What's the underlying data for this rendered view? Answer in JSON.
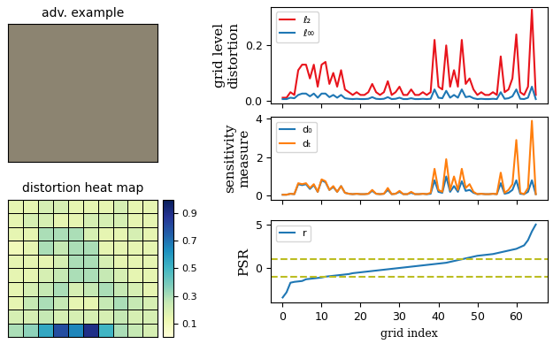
{
  "chart_data": [
    {
      "type": "image",
      "title": "adv. example"
    },
    {
      "type": "heatmap",
      "title": "distortion heat map",
      "tick_labels": false,
      "cells": [
        [
          0.15,
          0.15,
          0.2,
          0.2,
          0.15,
          0.15,
          0.15,
          0.2,
          0.15,
          0.15
        ],
        [
          0.15,
          0.2,
          0.2,
          0.15,
          0.15,
          0.2,
          0.2,
          0.2,
          0.15,
          0.15
        ],
        [
          0.15,
          0.15,
          0.3,
          0.3,
          0.3,
          0.2,
          0.15,
          0.15,
          0.2,
          0.15
        ],
        [
          0.1,
          0.15,
          0.3,
          0.25,
          0.3,
          0.3,
          0.15,
          0.15,
          0.15,
          0.15
        ],
        [
          0.15,
          0.15,
          0.15,
          0.2,
          0.3,
          0.3,
          0.2,
          0.15,
          0.15,
          0.15
        ],
        [
          0.15,
          0.15,
          0.2,
          0.25,
          0.3,
          0.3,
          0.25,
          0.2,
          0.15,
          0.15
        ],
        [
          0.15,
          0.2,
          0.25,
          0.3,
          0.2,
          0.25,
          0.3,
          0.25,
          0.2,
          0.15
        ],
        [
          0.15,
          0.25,
          0.3,
          0.25,
          0.15,
          0.15,
          0.25,
          0.3,
          0.25,
          0.2
        ],
        [
          0.2,
          0.2,
          0.25,
          0.2,
          0.2,
          0.2,
          0.2,
          0.25,
          0.2,
          0.2
        ],
        [
          0.3,
          0.35,
          0.55,
          0.8,
          0.65,
          0.9,
          0.5,
          0.3,
          0.25,
          0.2
        ]
      ],
      "colorbar": {
        "range": [
          0,
          1
        ],
        "ticks": [
          0.1,
          0.3,
          0.5,
          0.7,
          0.9
        ]
      }
    },
    {
      "type": "line",
      "y_label": "grid level\ndistortion",
      "tick_labels": "y",
      "legend": "upper left",
      "xlim": [
        -3,
        68
      ],
      "xticks": [
        0,
        10,
        20,
        30,
        40,
        50,
        60
      ],
      "ylim": [
        -0.01,
        0.34
      ],
      "yticks": [
        {
          "value": 0,
          "label": "0.0"
        },
        {
          "value": 0.2,
          "label": "0.2"
        }
      ],
      "x": [
        0,
        1,
        2,
        3,
        4,
        5,
        6,
        7,
        8,
        9,
        10,
        11,
        12,
        13,
        14,
        15,
        16,
        17,
        18,
        19,
        20,
        21,
        22,
        23,
        24,
        25,
        26,
        27,
        28,
        29,
        30,
        31,
        32,
        33,
        34,
        35,
        36,
        37,
        38,
        39,
        40,
        41,
        42,
        43,
        44,
        45,
        46,
        47,
        48,
        49,
        50,
        51,
        52,
        53,
        54,
        55,
        56,
        57,
        58,
        59,
        60,
        61,
        62,
        63,
        64,
        65
      ],
      "series": [
        {
          "name": "ℓ₂",
          "color": "#e8141c",
          "values": [
            0.01,
            0.01,
            0.03,
            0.02,
            0.11,
            0.13,
            0.13,
            0.08,
            0.13,
            0.05,
            0.13,
            0.14,
            0.06,
            0.1,
            0.05,
            0.11,
            0.04,
            0.03,
            0.02,
            0.03,
            0.02,
            0.02,
            0.03,
            0.06,
            0.03,
            0.02,
            0.03,
            0.07,
            0.02,
            0.03,
            0.05,
            0.02,
            0.02,
            0.04,
            0.02,
            0.02,
            0.03,
            0.02,
            0.03,
            0.22,
            0.05,
            0.04,
            0.2,
            0.05,
            0.11,
            0.05,
            0.22,
            0.06,
            0.08,
            0.04,
            0.02,
            0.03,
            0.02,
            0.02,
            0.03,
            0.02,
            0.16,
            0.03,
            0.04,
            0.08,
            0.24,
            0.03,
            0.02,
            0.05,
            0.33,
            0.02
          ]
        },
        {
          "name": "ℓ∞",
          "color": "#1f77b4",
          "values": [
            0.005,
            0.005,
            0.01,
            0.008,
            0.02,
            0.025,
            0.025,
            0.015,
            0.025,
            0.01,
            0.025,
            0.025,
            0.012,
            0.02,
            0.01,
            0.02,
            0.008,
            0.006,
            0.005,
            0.006,
            0.005,
            0.005,
            0.006,
            0.012,
            0.006,
            0.005,
            0.006,
            0.012,
            0.005,
            0.006,
            0.01,
            0.005,
            0.005,
            0.008,
            0.005,
            0.005,
            0.006,
            0.005,
            0.006,
            0.04,
            0.01,
            0.008,
            0.035,
            0.01,
            0.02,
            0.01,
            0.04,
            0.012,
            0.015,
            0.008,
            0.005,
            0.006,
            0.005,
            0.005,
            0.006,
            0.005,
            0.03,
            0.006,
            0.008,
            0.015,
            0.04,
            0.006,
            0.005,
            0.01,
            0.05,
            0.005
          ]
        }
      ]
    },
    {
      "type": "line",
      "y_label": "sensitivity\nmeasure",
      "tick_labels": "y",
      "legend": "upper left",
      "xlim": [
        -3,
        68
      ],
      "xticks": [
        0,
        10,
        20,
        30,
        40,
        50,
        60
      ],
      "ylim": [
        -0.2,
        4.1
      ],
      "yticks": [
        0,
        2,
        4
      ],
      "x": [
        0,
        1,
        2,
        3,
        4,
        5,
        6,
        7,
        8,
        9,
        10,
        11,
        12,
        13,
        14,
        15,
        16,
        17,
        18,
        19,
        20,
        21,
        22,
        23,
        24,
        25,
        26,
        27,
        28,
        29,
        30,
        31,
        32,
        33,
        34,
        35,
        36,
        37,
        38,
        39,
        40,
        41,
        42,
        43,
        44,
        45,
        46,
        47,
        48,
        49,
        50,
        51,
        52,
        53,
        54,
        55,
        56,
        57,
        58,
        59,
        60,
        61,
        62,
        63,
        64,
        65
      ],
      "series": [
        {
          "name": "d₀",
          "color": "#1f77b4",
          "values": [
            0.05,
            0.05,
            0.1,
            0.08,
            0.6,
            0.55,
            0.6,
            0.35,
            0.55,
            0.2,
            0.8,
            0.7,
            0.3,
            0.45,
            0.2,
            0.5,
            0.15,
            0.1,
            0.08,
            0.1,
            0.08,
            0.08,
            0.1,
            0.25,
            0.1,
            0.08,
            0.1,
            0.3,
            0.08,
            0.1,
            0.2,
            0.08,
            0.08,
            0.15,
            0.08,
            0.08,
            0.1,
            0.08,
            0.1,
            0.8,
            0.2,
            0.15,
            1.0,
            0.2,
            0.5,
            0.2,
            0.75,
            0.25,
            0.3,
            0.15,
            0.08,
            0.1,
            0.08,
            0.08,
            0.1,
            0.08,
            0.65,
            0.1,
            0.15,
            0.3,
            0.8,
            0.1,
            0.08,
            0.2,
            0.8,
            0.08
          ]
        },
        {
          "name": "dₜ",
          "color": "#ff7f0e",
          "values": [
            0.05,
            0.05,
            0.1,
            0.08,
            0.65,
            0.6,
            0.65,
            0.4,
            0.6,
            0.2,
            0.85,
            0.75,
            0.3,
            0.5,
            0.2,
            0.5,
            0.15,
            0.1,
            0.08,
            0.1,
            0.08,
            0.08,
            0.1,
            0.3,
            0.1,
            0.08,
            0.1,
            0.4,
            0.08,
            0.1,
            0.25,
            0.08,
            0.08,
            0.2,
            0.08,
            0.08,
            0.1,
            0.08,
            0.15,
            1.4,
            0.3,
            0.2,
            1.9,
            0.3,
            1.0,
            0.3,
            1.4,
            0.4,
            0.6,
            0.2,
            0.08,
            0.1,
            0.08,
            0.08,
            0.1,
            0.08,
            1.2,
            0.15,
            0.3,
            0.6,
            2.9,
            0.15,
            0.08,
            0.4,
            3.9,
            0.08
          ]
        }
      ]
    },
    {
      "type": "line",
      "y_label": "PSR",
      "x_label": "grid index",
      "legend": "upper left",
      "xlim": [
        -3,
        68
      ],
      "xticks": [
        0,
        10,
        20,
        30,
        40,
        50,
        60
      ],
      "ylim": [
        -4,
        5.5
      ],
      "yticks": [
        0,
        5
      ],
      "reference_lines": {
        "values": [
          -1,
          1
        ],
        "color": "#bcbd22",
        "line_style": "dashed"
      },
      "x": [
        0,
        1,
        2,
        3,
        4,
        5,
        6,
        7,
        8,
        9,
        10,
        11,
        12,
        13,
        14,
        15,
        16,
        17,
        18,
        19,
        20,
        21,
        22,
        23,
        24,
        25,
        26,
        27,
        28,
        29,
        30,
        31,
        32,
        33,
        34,
        35,
        36,
        37,
        38,
        39,
        40,
        41,
        42,
        43,
        44,
        45,
        46,
        47,
        48,
        49,
        50,
        51,
        52,
        53,
        54,
        55,
        56,
        57,
        58,
        59,
        60,
        61,
        62,
        63,
        64,
        65
      ],
      "series": [
        {
          "name": "r",
          "color": "#1f77b4",
          "values": [
            -3.4,
            -2.8,
            -1.7,
            -1.6,
            -1.55,
            -1.5,
            -1.3,
            -1.25,
            -1.2,
            -1.15,
            -1.1,
            -1.0,
            -0.95,
            -0.9,
            -0.85,
            -0.8,
            -0.75,
            -0.7,
            -0.6,
            -0.55,
            -0.5,
            -0.45,
            -0.4,
            -0.35,
            -0.3,
            -0.25,
            -0.2,
            -0.15,
            -0.1,
            -0.05,
            0.0,
            0.05,
            0.1,
            0.15,
            0.2,
            0.25,
            0.3,
            0.35,
            0.4,
            0.45,
            0.5,
            0.55,
            0.6,
            0.7,
            0.8,
            0.9,
            1.0,
            1.1,
            1.2,
            1.3,
            1.4,
            1.45,
            1.5,
            1.55,
            1.6,
            1.7,
            1.8,
            1.9,
            2.0,
            2.1,
            2.2,
            2.4,
            2.6,
            3.2,
            4.2,
            5.0
          ]
        }
      ]
    }
  ]
}
